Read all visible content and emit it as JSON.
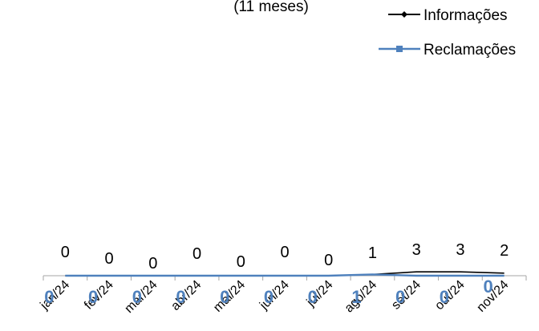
{
  "chart_data": {
    "type": "line",
    "title": "",
    "subtitle": "(11 meses)",
    "categories": [
      "jan/24",
      "fev/24",
      "mar/24",
      "abr/24",
      "mai/24",
      "jun/24",
      "jul/24",
      "ago/24",
      "set/24",
      "out/24",
      "nov/24"
    ],
    "series": [
      {
        "name": "Informações",
        "values": [
          0,
          0,
          0,
          0,
          0,
          0,
          0,
          1,
          3,
          3,
          2
        ],
        "color": "#000000",
        "marker": "diamond"
      },
      {
        "name": "Reclamações",
        "values": [
          0,
          0,
          0,
          0,
          0,
          0,
          0,
          1,
          0,
          0,
          0
        ],
        "color": "#4f81bd",
        "marker": "square"
      }
    ],
    "legend_position": "top-right",
    "grid": false,
    "xlabel": "",
    "ylabel": ""
  }
}
